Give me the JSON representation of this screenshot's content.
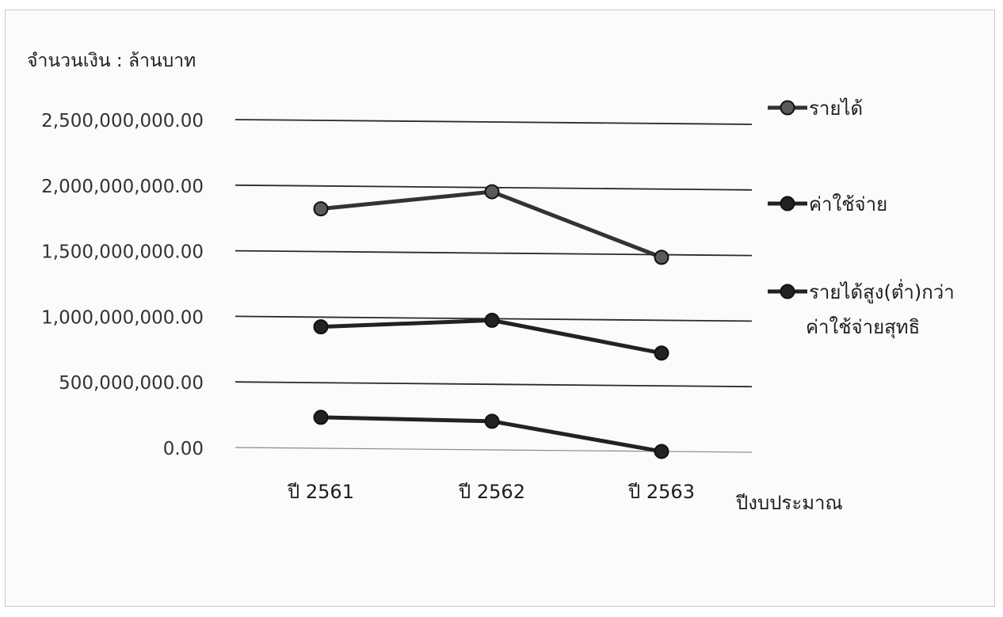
{
  "chart_data": {
    "type": "line",
    "ylabel": "จำนวนเงิน : ล้านบาท",
    "xlabel": "ปีงบประมาณ",
    "categories": [
      "ปี 2561",
      "ปี 2562",
      "ปี 2563"
    ],
    "ylim": [
      0,
      2500000000
    ],
    "yticks": [
      {
        "value": 0,
        "label": "0.00"
      },
      {
        "value": 500000000,
        "label": "500,000,000.00"
      },
      {
        "value": 1000000000,
        "label": "1,000,000,000.00"
      },
      {
        "value": 1500000000,
        "label": "1,500,000,000.00"
      },
      {
        "value": 2000000000,
        "label": "2,000,000,000.00"
      },
      {
        "value": 2500000000,
        "label": "2,500,000,000.00"
      }
    ],
    "grid": true,
    "legend_position": "right",
    "series": [
      {
        "name": "รายได้",
        "values": [
          1820000000,
          1950000000,
          1450000000
        ],
        "color": "#333333"
      },
      {
        "name": "ค่าใช้จ่าย",
        "values": [
          920000000,
          970000000,
          720000000
        ],
        "color": "#222222"
      },
      {
        "name": "รายได้สูง(ต่ำ)กว่าค่าใช้จ่ายสุทธิ",
        "name_lines": [
          "รายได้สูง(ต่ำ)กว่า",
          "ค่าใช้จ่ายสุทธิ"
        ],
        "values": [
          230000000,
          200000000,
          -30000000
        ],
        "color": "#222222"
      }
    ]
  }
}
